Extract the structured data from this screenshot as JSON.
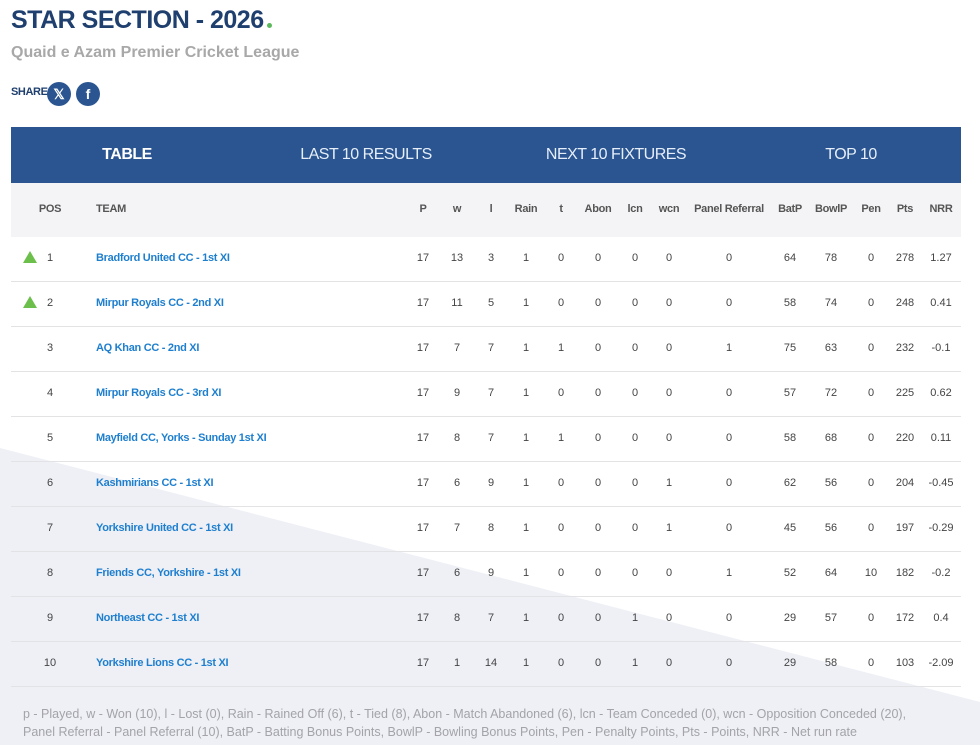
{
  "header": {
    "title": "STAR SECTION - 2026",
    "subtitle": "Quaid e Azam Premier Cricket League",
    "share": "SHARE"
  },
  "tabs": [
    "TABLE",
    "LAST 10 RESULTS",
    "NEXT 10 FIXTURES",
    "TOP 10"
  ],
  "table": {
    "columns": [
      "POS",
      "TEAM",
      "P",
      "w",
      "l",
      "Rain",
      "t",
      "Abon",
      "lcn",
      "wcn",
      "Panel Referral",
      "BatP",
      "BowlP",
      "Pen",
      "Pts",
      "NRR"
    ],
    "rows": [
      [
        1,
        "Bradford United CC - 1st XI",
        17,
        13,
        3,
        1,
        0,
        0,
        0,
        0,
        0,
        64,
        78,
        0,
        278,
        1.27
      ],
      [
        2,
        "Mirpur Royals CC - 2nd XI",
        17,
        11,
        5,
        1,
        0,
        0,
        0,
        0,
        0,
        58,
        74,
        0,
        248,
        0.41
      ],
      [
        3,
        "AQ Khan CC - 2nd XI",
        17,
        7,
        7,
        1,
        1,
        0,
        0,
        0,
        1,
        75,
        63,
        0,
        232,
        -0.1
      ],
      [
        4,
        "Mirpur Royals CC - 3rd XI",
        17,
        9,
        7,
        1,
        0,
        0,
        0,
        0,
        0,
        57,
        72,
        0,
        225,
        0.62
      ],
      [
        5,
        "Mayfield CC, Yorks - Sunday 1st XI",
        17,
        8,
        7,
        1,
        1,
        0,
        0,
        0,
        0,
        58,
        68,
        0,
        220,
        0.11
      ],
      [
        6,
        "Kashmirians CC - 1st XI",
        17,
        6,
        9,
        1,
        0,
        0,
        0,
        1,
        0,
        62,
        56,
        0,
        204,
        -0.45
      ],
      [
        7,
        "Yorkshire United CC - 1st XI",
        17,
        7,
        8,
        1,
        0,
        0,
        0,
        1,
        0,
        45,
        56,
        0,
        197,
        -0.29
      ],
      [
        8,
        "Friends CC, Yorkshire - 1st XI",
        17,
        6,
        9,
        1,
        0,
        0,
        0,
        0,
        1,
        52,
        64,
        10,
        182,
        -0.2
      ],
      [
        9,
        "Northeast CC - 1st XI",
        17,
        8,
        7,
        1,
        0,
        0,
        1,
        0,
        0,
        29,
        57,
        0,
        172,
        0.4
      ],
      [
        10,
        "Yorkshire Lions CC - 1st XI",
        17,
        1,
        14,
        1,
        0,
        0,
        1,
        0,
        0,
        29,
        58,
        0,
        103,
        -2.09
      ]
    ]
  },
  "footer": "p - Played, w - Won (10), l - Lost (0), Rain - Rained Off (6), t - Tied (8), Abon - Match Abandoned (6), lcn - Team Conceded (0), wcn - Opposition Conceded (20), Panel Referral - Panel Referral (10), BatP - Batting Bonus Points, BowlP - Bowling Bonus Points, Pen - Penalty Points, Pts - Points, NRR - Net run rate"
}
